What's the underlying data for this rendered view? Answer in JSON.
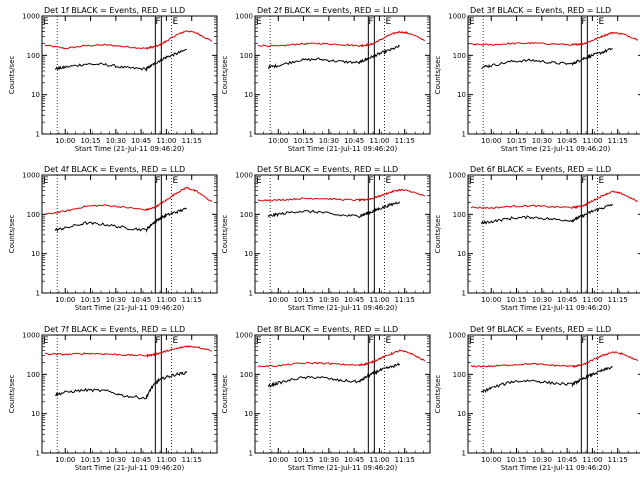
{
  "colors": {
    "events": "#000000",
    "lld": "#dd0000",
    "axis": "#000000"
  },
  "chart_data": [
    {
      "type": "line",
      "title": "Det 1f BLACK = Events, RED = LLD",
      "xlabel": "Start Time (21-Jul-11 09:46:20)",
      "ylabel": "Counts/sec",
      "yscale": "log",
      "ylim": [
        1,
        1000
      ],
      "xlim": [
        9.77,
        11.5
      ],
      "xticks": [
        10.0,
        10.25,
        10.5,
        10.75,
        11.0,
        11.25
      ],
      "xtick_labels": [
        "10:00",
        "10:15",
        "10:30",
        "10:45",
        "11:00",
        "11:15"
      ],
      "yticks": [
        1,
        10,
        100,
        1000
      ],
      "ytick_labels": [
        "1",
        "10",
        "100",
        "1000"
      ],
      "flags": [
        {
          "x": 10.92,
          "label": "F"
        },
        {
          "x": 11.06,
          "label": "E"
        }
      ],
      "dotted_x": [
        9.92,
        11.05
      ],
      "series": [
        {
          "key": "lld",
          "x": [
            9.8,
            10.0,
            10.2,
            10.4,
            10.6,
            10.8,
            10.85,
            10.92,
            11.0,
            11.1,
            11.2,
            11.3,
            11.45
          ],
          "y": [
            180,
            150,
            175,
            185,
            165,
            150,
            160,
            175,
            230,
            330,
            420,
            370,
            230
          ]
        },
        {
          "key": "events",
          "x": [
            9.9,
            10.0,
            10.2,
            10.4,
            10.6,
            10.8,
            10.85,
            10.92,
            11.0,
            11.1,
            11.2
          ],
          "y": [
            45,
            50,
            60,
            58,
            48,
            45,
            55,
            70,
            90,
            110,
            140
          ]
        }
      ]
    },
    {
      "type": "line",
      "title": "Det 2f BLACK = Events, RED = LLD",
      "xlabel": "Start Time (21-Jul-11 09:46:20)",
      "ylabel": "Counts/sec",
      "yscale": "log",
      "ylim": [
        1,
        1000
      ],
      "xlim": [
        9.77,
        11.5
      ],
      "xticks": [
        10.0,
        10.25,
        10.5,
        10.75,
        11.0,
        11.25
      ],
      "xtick_labels": [
        "10:00",
        "10:15",
        "10:30",
        "10:45",
        "11:00",
        "11:15"
      ],
      "yticks": [
        1,
        10,
        100,
        1000
      ],
      "ytick_labels": [
        "1",
        "10",
        "100",
        "1000"
      ],
      "flags": [
        {
          "x": 10.92,
          "label": "F"
        },
        {
          "x": 11.06,
          "label": "E"
        }
      ],
      "dotted_x": [
        9.92,
        11.05
      ],
      "series": [
        {
          "key": "lld",
          "x": [
            9.8,
            10.0,
            10.2,
            10.4,
            10.6,
            10.8,
            10.85,
            10.92,
            11.0,
            11.1,
            11.2,
            11.3,
            11.45
          ],
          "y": [
            180,
            170,
            195,
            200,
            190,
            175,
            180,
            190,
            240,
            330,
            400,
            360,
            240
          ]
        },
        {
          "key": "events",
          "x": [
            9.9,
            10.0,
            10.2,
            10.4,
            10.6,
            10.8,
            10.85,
            10.92,
            11.0,
            11.1,
            11.2
          ],
          "y": [
            50,
            55,
            75,
            80,
            70,
            65,
            75,
            90,
            110,
            135,
            170
          ]
        }
      ]
    },
    {
      "type": "line",
      "title": "Det 3f BLACK = Events, RED = LLD",
      "xlabel": "Start Time (21-Jul-11 09:46:20)",
      "ylabel": "Counts/sec",
      "yscale": "log",
      "ylim": [
        1,
        1000
      ],
      "xlim": [
        9.77,
        11.5
      ],
      "xticks": [
        10.0,
        10.25,
        10.5,
        10.75,
        11.0,
        11.25
      ],
      "xtick_labels": [
        "10:00",
        "10:15",
        "10:30",
        "10:45",
        "11:00",
        "11:15"
      ],
      "yticks": [
        1,
        10,
        100,
        1000
      ],
      "ytick_labels": [
        "1",
        "10",
        "100",
        "1000"
      ],
      "flags": [
        {
          "x": 10.92,
          "label": "F"
        },
        {
          "x": 11.06,
          "label": "E"
        }
      ],
      "dotted_x": [
        9.92,
        11.05
      ],
      "series": [
        {
          "key": "lld",
          "x": [
            9.8,
            10.0,
            10.2,
            10.4,
            10.6,
            10.8,
            10.85,
            10.92,
            11.0,
            11.1,
            11.2,
            11.3,
            11.45
          ],
          "y": [
            190,
            185,
            200,
            205,
            195,
            185,
            190,
            200,
            240,
            310,
            380,
            350,
            250
          ]
        },
        {
          "key": "events",
          "x": [
            9.9,
            10.0,
            10.2,
            10.4,
            10.6,
            10.8,
            10.85,
            10.92,
            11.0,
            11.1,
            11.2
          ],
          "y": [
            50,
            55,
            70,
            75,
            65,
            60,
            70,
            85,
            100,
            120,
            150
          ]
        }
      ]
    },
    {
      "type": "line",
      "title": "Det 4f BLACK = Events, RED = LLD",
      "xlabel": "Start Time (21-Jul-11 09:46:20)",
      "ylabel": "Counts/sec",
      "yscale": "log",
      "ylim": [
        1,
        1000
      ],
      "xlim": [
        9.77,
        11.5
      ],
      "xticks": [
        10.0,
        10.25,
        10.5,
        10.75,
        11.0,
        11.25
      ],
      "xtick_labels": [
        "10:00",
        "10:15",
        "10:30",
        "10:45",
        "11:00",
        "11:15"
      ],
      "yticks": [
        1,
        10,
        100,
        1000
      ],
      "ytick_labels": [
        "1",
        "10",
        "100",
        "1000"
      ],
      "flags": [
        {
          "x": 10.92,
          "label": "F"
        },
        {
          "x": 11.06,
          "label": "E"
        }
      ],
      "dotted_x": [
        9.92,
        11.05
      ],
      "series": [
        {
          "key": "lld",
          "x": [
            9.8,
            10.0,
            10.2,
            10.4,
            10.6,
            10.8,
            10.85,
            10.92,
            11.0,
            11.1,
            11.2,
            11.3,
            11.45
          ],
          "y": [
            100,
            120,
            160,
            170,
            150,
            130,
            140,
            170,
            230,
            350,
            480,
            380,
            210
          ]
        },
        {
          "key": "events",
          "x": [
            9.9,
            10.0,
            10.2,
            10.4,
            10.6,
            10.8,
            10.85,
            10.92,
            11.0,
            11.1,
            11.2
          ],
          "y": [
            40,
            45,
            60,
            55,
            45,
            40,
            55,
            75,
            95,
            115,
            140
          ]
        }
      ]
    },
    {
      "type": "line",
      "title": "Det 5f BLACK = Events, RED = LLD",
      "xlabel": "Start Time (21-Jul-11 09:46:20)",
      "ylabel": "Counts/sec",
      "yscale": "log",
      "ylim": [
        1,
        1000
      ],
      "xlim": [
        9.77,
        11.5
      ],
      "xticks": [
        10.0,
        10.25,
        10.5,
        10.75,
        11.0,
        11.25
      ],
      "xtick_labels": [
        "10:00",
        "10:15",
        "10:30",
        "10:45",
        "11:00",
        "11:15"
      ],
      "yticks": [
        1,
        10,
        100,
        1000
      ],
      "ytick_labels": [
        "1",
        "10",
        "100",
        "1000"
      ],
      "flags": [
        {
          "x": 10.92,
          "label": "F"
        },
        {
          "x": 11.06,
          "label": "E"
        }
      ],
      "dotted_x": [
        9.92,
        11.05
      ],
      "series": [
        {
          "key": "lld",
          "x": [
            9.8,
            10.0,
            10.2,
            10.4,
            10.6,
            10.8,
            10.85,
            10.92,
            11.0,
            11.1,
            11.2,
            11.3,
            11.45
          ],
          "y": [
            230,
            230,
            250,
            255,
            240,
            230,
            235,
            250,
            290,
            360,
            420,
            390,
            290
          ]
        },
        {
          "key": "events",
          "x": [
            9.9,
            10.0,
            10.2,
            10.4,
            10.6,
            10.8,
            10.85,
            10.92,
            11.0,
            11.1,
            11.2
          ],
          "y": [
            90,
            100,
            120,
            115,
            95,
            90,
            100,
            115,
            140,
            170,
            210
          ]
        }
      ]
    },
    {
      "type": "line",
      "title": "Det 6f BLACK = Events, RED = LLD",
      "xlabel": "Start Time (21-Jul-11 09:46:20)",
      "ylabel": "Counts/sec",
      "yscale": "log",
      "ylim": [
        1,
        1000
      ],
      "xlim": [
        9.77,
        11.5
      ],
      "xticks": [
        10.0,
        10.25,
        10.5,
        10.75,
        11.0,
        11.25
      ],
      "xtick_labels": [
        "10:00",
        "10:15",
        "10:30",
        "10:45",
        "11:00",
        "11:15"
      ],
      "yticks": [
        1,
        10,
        100,
        1000
      ],
      "ytick_labels": [
        "1",
        "10",
        "100",
        "1000"
      ],
      "flags": [
        {
          "x": 10.92,
          "label": "F"
        },
        {
          "x": 11.06,
          "label": "E"
        }
      ],
      "dotted_x": [
        9.92,
        11.05
      ],
      "series": [
        {
          "key": "lld",
          "x": [
            9.8,
            10.0,
            10.2,
            10.4,
            10.6,
            10.8,
            10.85,
            10.92,
            11.0,
            11.1,
            11.2,
            11.3,
            11.45
          ],
          "y": [
            150,
            145,
            160,
            165,
            155,
            150,
            155,
            170,
            220,
            300,
            380,
            330,
            210
          ]
        },
        {
          "key": "events",
          "x": [
            9.9,
            10.0,
            10.2,
            10.4,
            10.6,
            10.8,
            10.85,
            10.92,
            11.0,
            11.1,
            11.2
          ],
          "y": [
            60,
            65,
            80,
            85,
            75,
            70,
            80,
            95,
            120,
            145,
            180
          ]
        }
      ]
    },
    {
      "type": "line",
      "title": "Det 7f BLACK = Events, RED = LLD",
      "xlabel": "Start Time (21-Jul-11 09:46:20)",
      "ylabel": "Counts/sec",
      "yscale": "log",
      "ylim": [
        1,
        1000
      ],
      "xlim": [
        9.77,
        11.5
      ],
      "xticks": [
        10.0,
        10.25,
        10.5,
        10.75,
        11.0,
        11.25
      ],
      "xtick_labels": [
        "10:00",
        "10:15",
        "10:30",
        "10:45",
        "11:00",
        "11:15"
      ],
      "yticks": [
        1,
        10,
        100,
        1000
      ],
      "ytick_labels": [
        "1",
        "10",
        "100",
        "1000"
      ],
      "flags": [
        {
          "x": 10.92,
          "label": "F"
        },
        {
          "x": 11.06,
          "label": "E"
        }
      ],
      "dotted_x": [
        9.92,
        11.05
      ],
      "series": [
        {
          "key": "lld",
          "x": [
            9.8,
            10.0,
            10.2,
            10.4,
            10.6,
            10.8,
            10.85,
            10.92,
            11.0,
            11.1,
            11.2,
            11.3,
            11.45
          ],
          "y": [
            330,
            320,
            340,
            330,
            310,
            300,
            310,
            340,
            390,
            450,
            520,
            500,
            400
          ]
        },
        {
          "key": "events",
          "x": [
            9.9,
            10.0,
            10.2,
            10.4,
            10.6,
            10.8,
            10.85,
            10.92,
            11.0,
            11.1,
            11.2
          ],
          "y": [
            30,
            35,
            40,
            38,
            28,
            25,
            45,
            70,
            85,
            100,
            110
          ]
        }
      ]
    },
    {
      "type": "line",
      "title": "Det 8f BLACK = Events, RED = LLD",
      "xlabel": "Start Time (21-Jul-11 09:46:20)",
      "ylabel": "Counts/sec",
      "yscale": "log",
      "ylim": [
        1,
        1000
      ],
      "xlim": [
        9.77,
        11.5
      ],
      "xticks": [
        10.0,
        10.25,
        10.5,
        10.75,
        11.0,
        11.25
      ],
      "xtick_labels": [
        "10:00",
        "10:15",
        "10:30",
        "10:45",
        "11:00",
        "11:15"
      ],
      "yticks": [
        1,
        10,
        100,
        1000
      ],
      "ytick_labels": [
        "1",
        "10",
        "100",
        "1000"
      ],
      "flags": [
        {
          "x": 10.92,
          "label": "F"
        },
        {
          "x": 11.06,
          "label": "E"
        }
      ],
      "dotted_x": [
        9.92,
        11.05
      ],
      "series": [
        {
          "key": "lld",
          "x": [
            9.8,
            10.0,
            10.2,
            10.4,
            10.6,
            10.8,
            10.85,
            10.92,
            11.0,
            11.1,
            11.2,
            11.3,
            11.45
          ],
          "y": [
            160,
            165,
            190,
            195,
            180,
            170,
            180,
            200,
            250,
            320,
            400,
            350,
            220
          ]
        },
        {
          "key": "events",
          "x": [
            9.9,
            10.0,
            10.2,
            10.4,
            10.6,
            10.8,
            10.85,
            10.92,
            11.0,
            11.1,
            11.2
          ],
          "y": [
            50,
            60,
            80,
            85,
            70,
            65,
            80,
            100,
            125,
            150,
            180
          ]
        }
      ]
    },
    {
      "type": "line",
      "title": "Det 9f BLACK = Events, RED = LLD",
      "xlabel": "Start Time (21-Jul-11 09:46:20)",
      "ylabel": "Counts/sec",
      "yscale": "log",
      "ylim": [
        1,
        1000
      ],
      "xlim": [
        9.77,
        11.5
      ],
      "xticks": [
        10.0,
        10.25,
        10.5,
        10.75,
        11.0,
        11.25
      ],
      "xtick_labels": [
        "10:00",
        "10:15",
        "10:30",
        "10:45",
        "11:00",
        "11:15"
      ],
      "yticks": [
        1,
        10,
        100,
        1000
      ],
      "ytick_labels": [
        "1",
        "10",
        "100",
        "1000"
      ],
      "flags": [
        {
          "x": 10.92,
          "label": "F"
        },
        {
          "x": 11.06,
          "label": "E"
        }
      ],
      "dotted_x": [
        9.92,
        11.05
      ],
      "series": [
        {
          "key": "lld",
          "x": [
            9.8,
            10.0,
            10.2,
            10.4,
            10.6,
            10.8,
            10.85,
            10.92,
            11.0,
            11.1,
            11.2,
            11.3,
            11.45
          ],
          "y": [
            160,
            160,
            175,
            185,
            170,
            160,
            165,
            180,
            230,
            300,
            370,
            330,
            220
          ]
        },
        {
          "key": "events",
          "x": [
            9.9,
            10.0,
            10.2,
            10.4,
            10.6,
            10.8,
            10.85,
            10.92,
            11.0,
            11.1,
            11.2
          ],
          "y": [
            35,
            45,
            65,
            70,
            60,
            55,
            65,
            80,
            100,
            125,
            155
          ]
        }
      ]
    }
  ]
}
